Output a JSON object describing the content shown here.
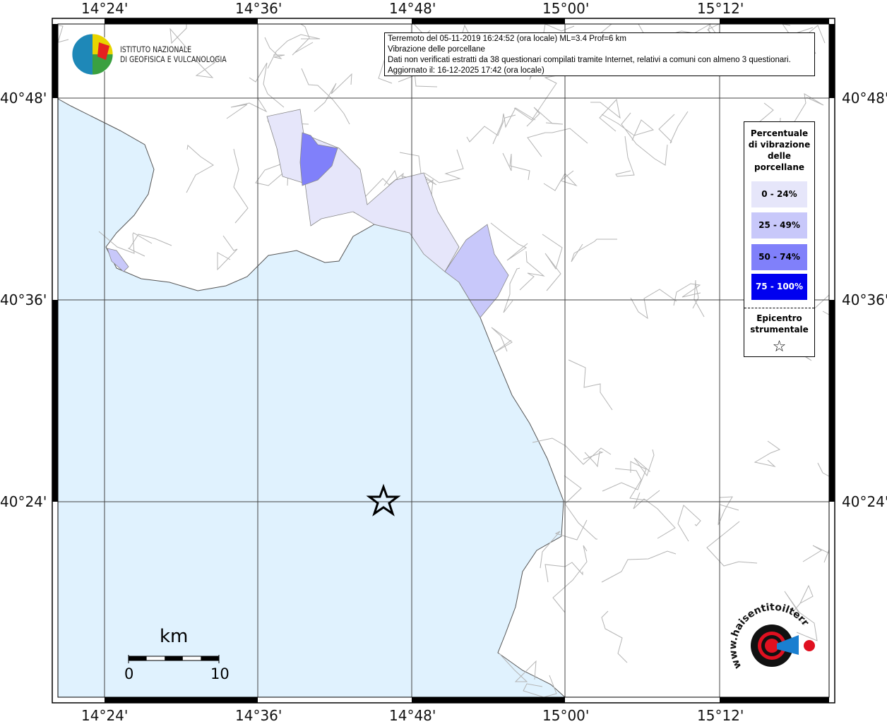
{
  "info": {
    "line1": "Terremoto del 05-11-2019 16:24:52 (ora locale) ML=3.4 Prof=6 km",
    "line2": "Vibrazione delle porcellane",
    "line3": "Dati non verificati estratti da 38 questionari compilati tramite Internet, relativi a comuni con almeno 3 questionari.",
    "line4": "Aggiornato il: 16-12-2025 17:42 (ora locale)"
  },
  "logo_ingv": {
    "line1": "ISTITUTO NAZIONALE",
    "line2": "DI GEOFISICA E VULCANOLOGIA"
  },
  "logo_hsit": "www.haisentitoilterremoto.it",
  "axes": {
    "lon_labels": [
      "14°24'",
      "14°36'",
      "14°48'",
      "15°00'",
      "15°12'"
    ],
    "lat_labels": [
      "40°48'",
      "40°36'",
      "40°24'"
    ]
  },
  "legend": {
    "title_lines": [
      "Percentuale",
      "di vibrazione",
      "delle",
      "porcellane"
    ],
    "classes": [
      {
        "label": "0 - 24%",
        "color": "#e6e6fa"
      },
      {
        "label": "25 - 49%",
        "color": "#c8c8fa"
      },
      {
        "label": "50 - 74%",
        "color": "#8080fa"
      },
      {
        "label": "75 - 100%",
        "color": "#0000f0"
      }
    ],
    "epicenter_lines": [
      "Epicentro",
      "strumentale"
    ],
    "epicenter_symbol": "☆"
  },
  "scale": {
    "unit": "km",
    "start": "0",
    "end": "10"
  },
  "colors": {
    "sea": "#e0f2fe",
    "boundaries": "#b4b4b4",
    "grid": "#444444"
  }
}
